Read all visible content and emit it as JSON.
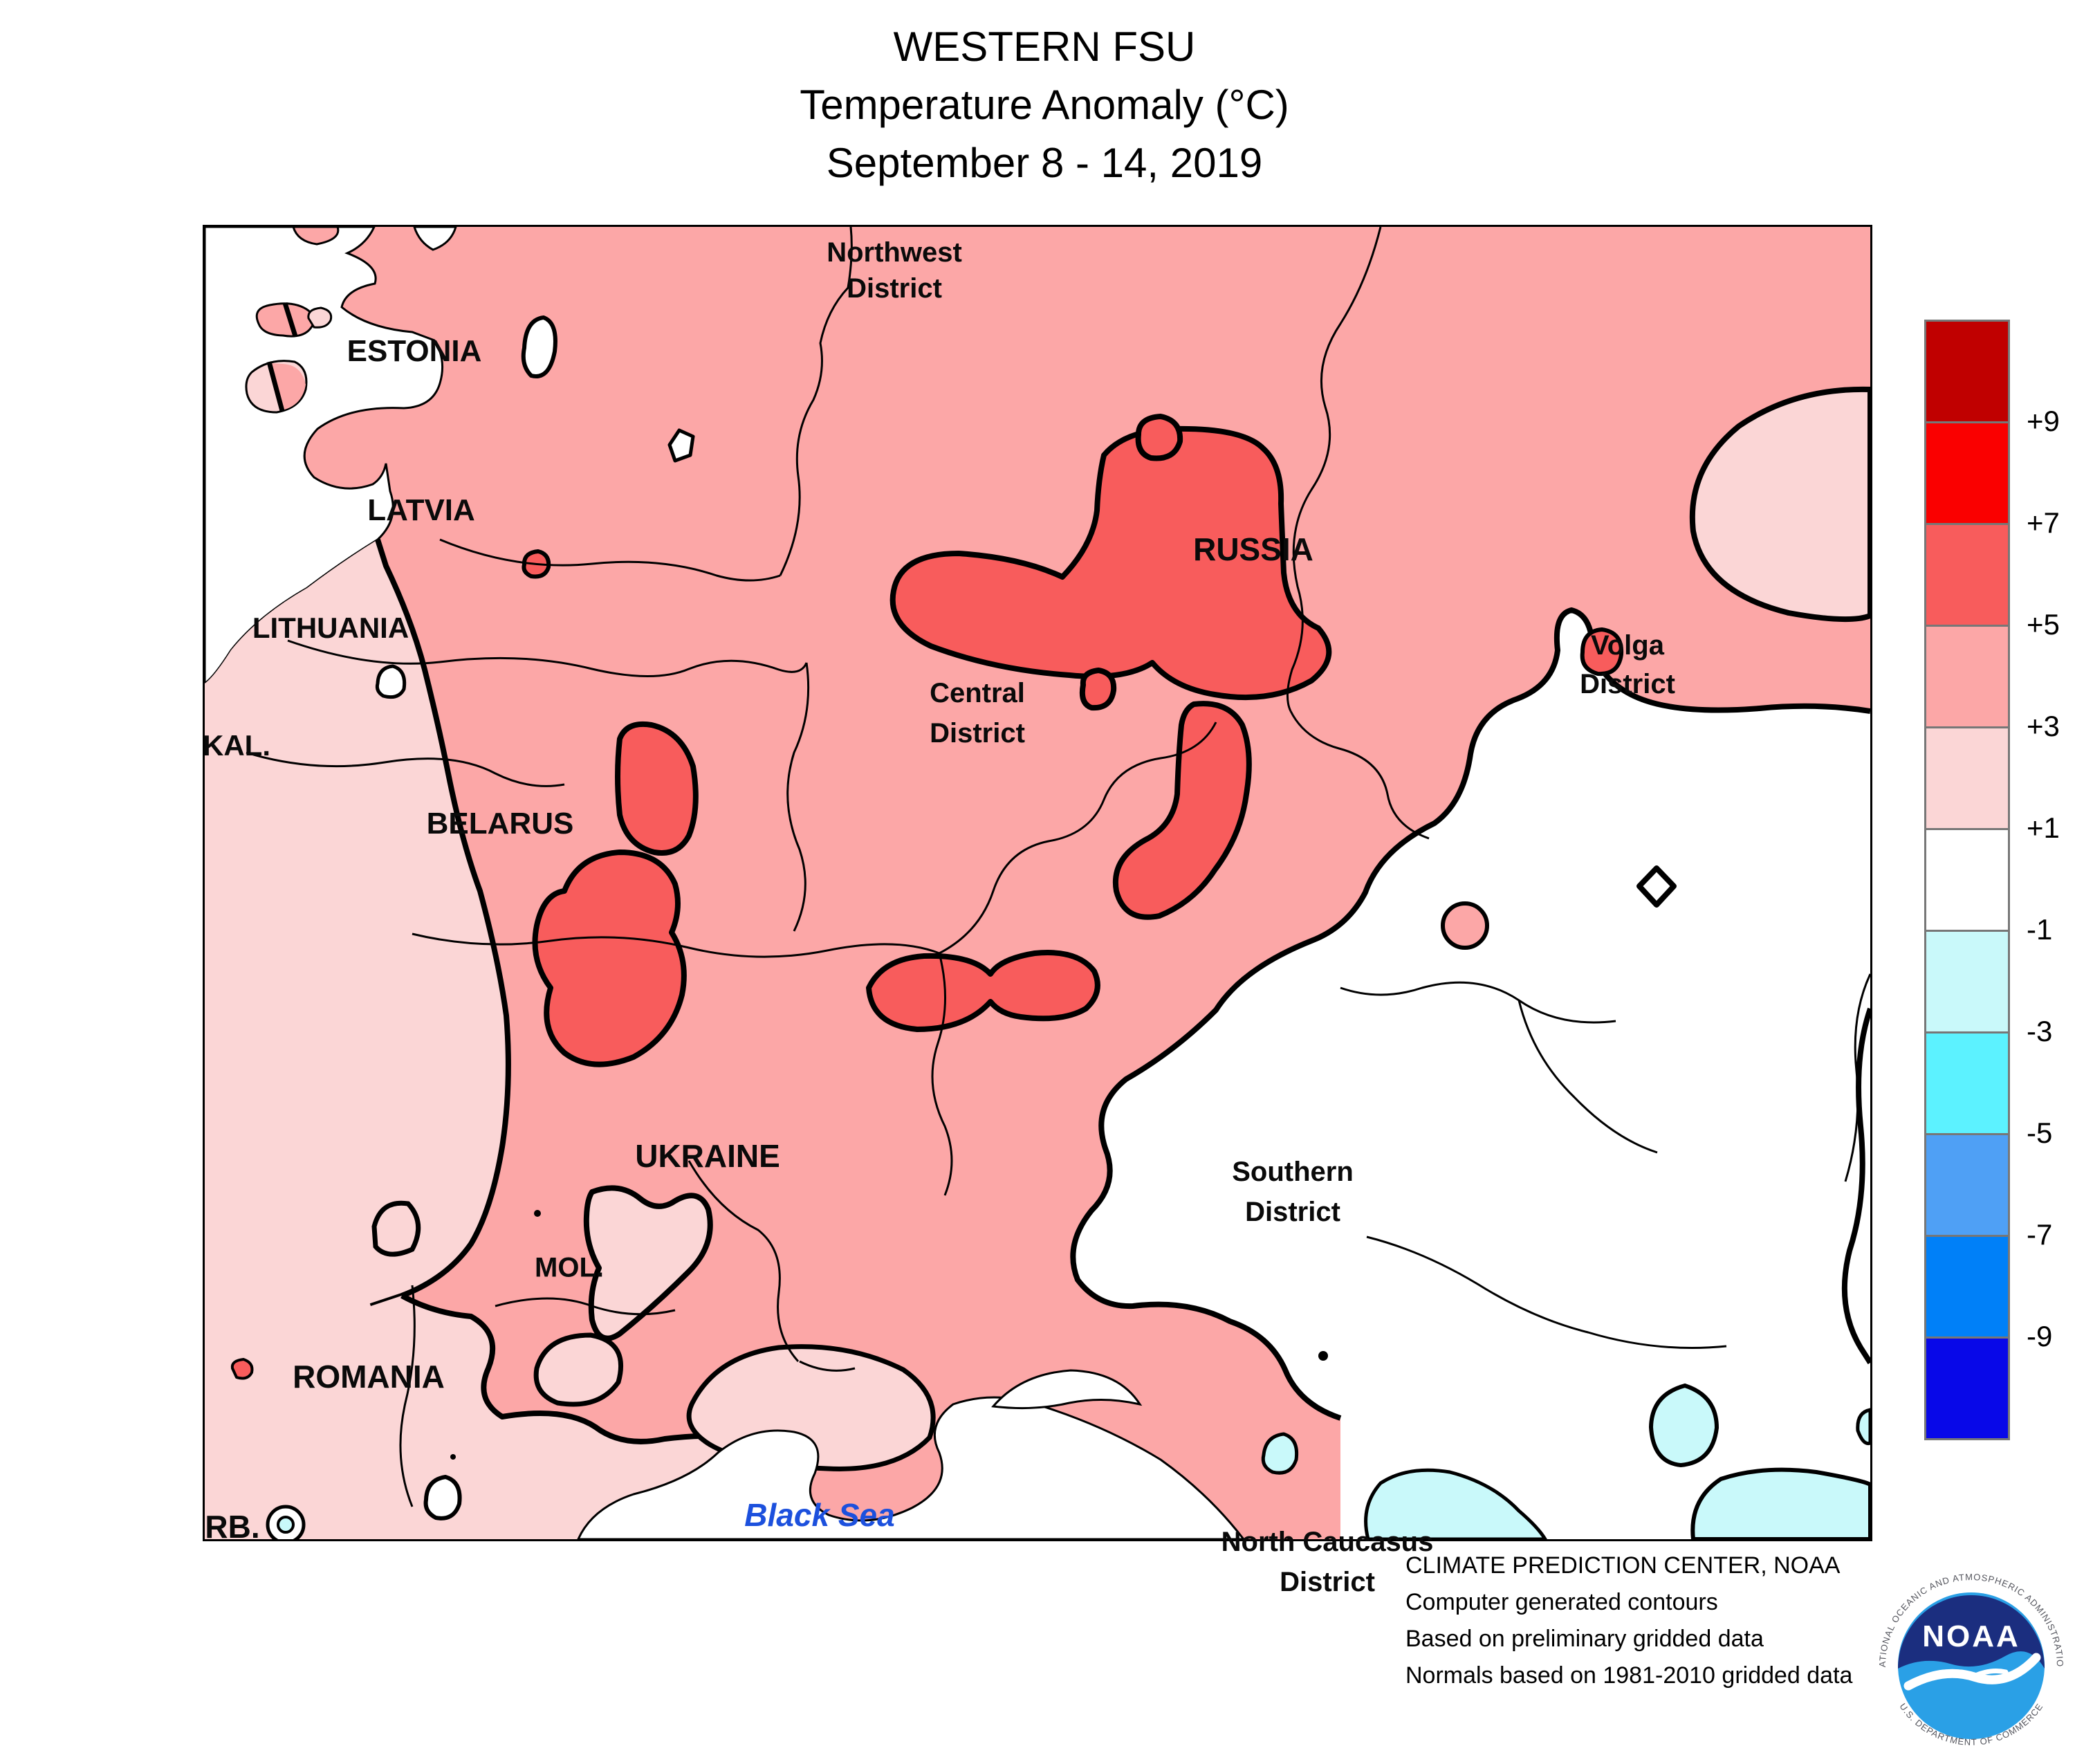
{
  "title": {
    "line1": "WESTERN FSU",
    "line2": "Temperature Anomaly (°C)",
    "line3": "September 8 - 14, 2019"
  },
  "map": {
    "labels": {
      "estonia": "ESTONIA",
      "latvia": "LATVIA",
      "lithuania": "LITHUANIA",
      "kaliningrad": "KAL.",
      "belarus": "BELARUS",
      "russia": "RUSSIA",
      "ukraine": "UKRAINE",
      "moldova": "MOL.",
      "romania": "ROMANIA",
      "serbia": "RB.",
      "northwest_1": "Northwest",
      "northwest_2": "District",
      "central_1": "Central",
      "central_2": "District",
      "volga_1": "Volga",
      "volga_2": "District",
      "southern_1": "Southern",
      "southern_2": "District",
      "north_caucasus_1": "North Caucasus",
      "north_caucasus_2": "District",
      "black_sea": "Black Sea"
    }
  },
  "legend": {
    "tick_labels": [
      "+9",
      "+7",
      "+5",
      "+3",
      "+1",
      "-1",
      "-3",
      "-5",
      "-7",
      "-9"
    ],
    "box_colors": [
      "#C00000",
      "#FA0000",
      "#F85C5C",
      "#FCA7A7",
      "#FBD6D6",
      "#FFFFFF",
      "#C9F9FA",
      "#5CF2FF",
      "#4FA0F5",
      "#0080F8",
      "#0808E8"
    ]
  },
  "credits": {
    "line1": "CLIMATE PREDICTION CENTER, NOAA",
    "line2": "Computer generated contours",
    "line3": "Based on preliminary gridded data",
    "line4": "Normals based on 1981-2010 gridded data"
  },
  "logo": {
    "name": "NOAA",
    "arc_top": "NATIONAL OCEANIC AND ATMOSPHERIC ADMINISTRATION",
    "arc_bottom": "U.S. DEPARTMENT OF COMMERCE"
  },
  "colors": {
    "sea_label_blue": "#1C50DD",
    "logo_navy": "#1B2E7F",
    "logo_blue": "#2AA0E6",
    "logo_arc_gray": "#55565E",
    "contour_black": "#000000",
    "legend_border_gray": "#777777"
  }
}
